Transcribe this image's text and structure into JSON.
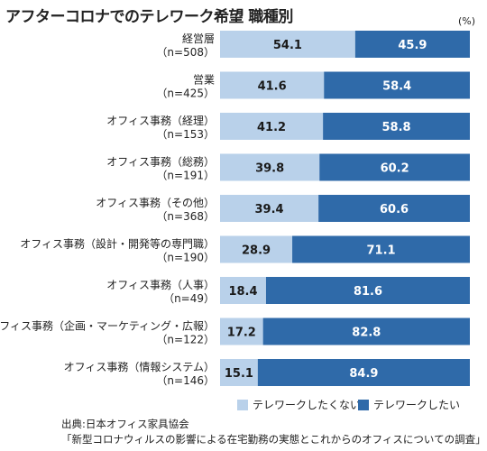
{
  "colors": {
    "light": "#b9d1ea",
    "dark": "#2f6aa9"
  },
  "chart_data": {
    "type": "bar",
    "orientation": "horizontal-stacked",
    "title": "アフターコロナでのテレワーク希望 職種別",
    "unit": "(%)",
    "categories": [
      {
        "label": "経営層",
        "n": "（n=508）"
      },
      {
        "label": "営業",
        "n": "（n=425）"
      },
      {
        "label": "オフィス事務（経理）",
        "n": "（n=153）"
      },
      {
        "label": "オフィス事務（総務）",
        "n": "（n=191）"
      },
      {
        "label": "オフィス事務（その他）",
        "n": "（n=368）"
      },
      {
        "label": "オフィス事務（設計・開発等の専門職）",
        "n": "（n=190）"
      },
      {
        "label": "オフィス事務（人事）",
        "n": "（n=49）"
      },
      {
        "label": "オフィス事務（企画・マーケティング・広報）",
        "n": "（n=122）"
      },
      {
        "label": "オフィス事務（情報システム）",
        "n": "（n=146）"
      }
    ],
    "series": [
      {
        "name": "テレワークしたくない",
        "values": [
          54.1,
          41.6,
          41.2,
          39.8,
          39.4,
          28.9,
          18.4,
          17.2,
          15.1
        ]
      },
      {
        "name": "テレワークしたい",
        "values": [
          45.9,
          58.4,
          58.8,
          60.2,
          60.6,
          71.1,
          81.6,
          82.8,
          84.9
        ]
      }
    ],
    "xlim": [
      0,
      100
    ]
  },
  "source": {
    "line1": "出典:日本オフィス家具協会",
    "line2": "「新型コロナウィルスの影響による在宅勤務の実態とこれからのオフィスについての調査」"
  }
}
